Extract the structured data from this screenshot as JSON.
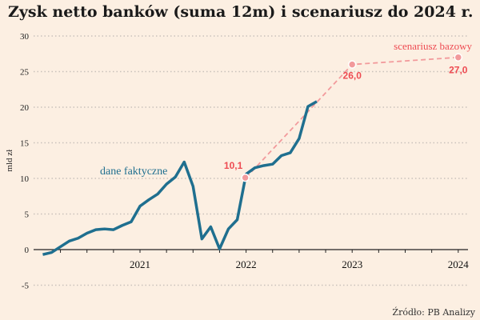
{
  "chart_data": {
    "type": "line",
    "title": "Zysk netto banków (suma 12m) i scenariusz do 2024 r.",
    "ylabel": "mld zł",
    "ylim": [
      -5,
      30
    ],
    "yticks": [
      -5,
      0,
      5,
      10,
      15,
      20,
      25,
      30
    ],
    "xticks": [
      "2021",
      "2022",
      "2023",
      "2024"
    ],
    "grid": true,
    "source": "Źródło: PB Analizy",
    "colors": {
      "actual": "#1f6f8f",
      "scenario": "#f29a9c",
      "labels": "#ee4b52",
      "background": "#fcefe2"
    },
    "series": [
      {
        "name": "dane faktyczne",
        "x": [
          "2020-02",
          "2020-03",
          "2020-04",
          "2020-05",
          "2020-06",
          "2020-07",
          "2020-08",
          "2020-09",
          "2020-10",
          "2020-11",
          "2020-12",
          "2021-01",
          "2021-02",
          "2021-03",
          "2021-04",
          "2021-05",
          "2021-06",
          "2021-07",
          "2021-08",
          "2021-09",
          "2021-10",
          "2021-11",
          "2021-12",
          "2022-01",
          "2022-02",
          "2022-03",
          "2022-04",
          "2022-05",
          "2022-06",
          "2022-07",
          "2022-08",
          "2022-09"
        ],
        "values": [
          -0.7,
          -0.4,
          0.4,
          1.2,
          1.6,
          2.3,
          2.8,
          2.9,
          2.8,
          3.4,
          3.9,
          6.1,
          7.0,
          7.8,
          9.2,
          10.2,
          12.3,
          8.9,
          1.5,
          3.2,
          0.1,
          2.9,
          4.2,
          10.6,
          11.5,
          11.8,
          12.0,
          13.2,
          13.6,
          15.6,
          20.1,
          20.8
        ]
      },
      {
        "name": "scenariusz bazowy",
        "x": [
          "2022-01",
          "2023-01",
          "2024-01"
        ],
        "values": [
          10.1,
          26.0,
          27.0
        ],
        "labels": [
          "10,1",
          "26,0",
          "27,0"
        ]
      }
    ]
  }
}
